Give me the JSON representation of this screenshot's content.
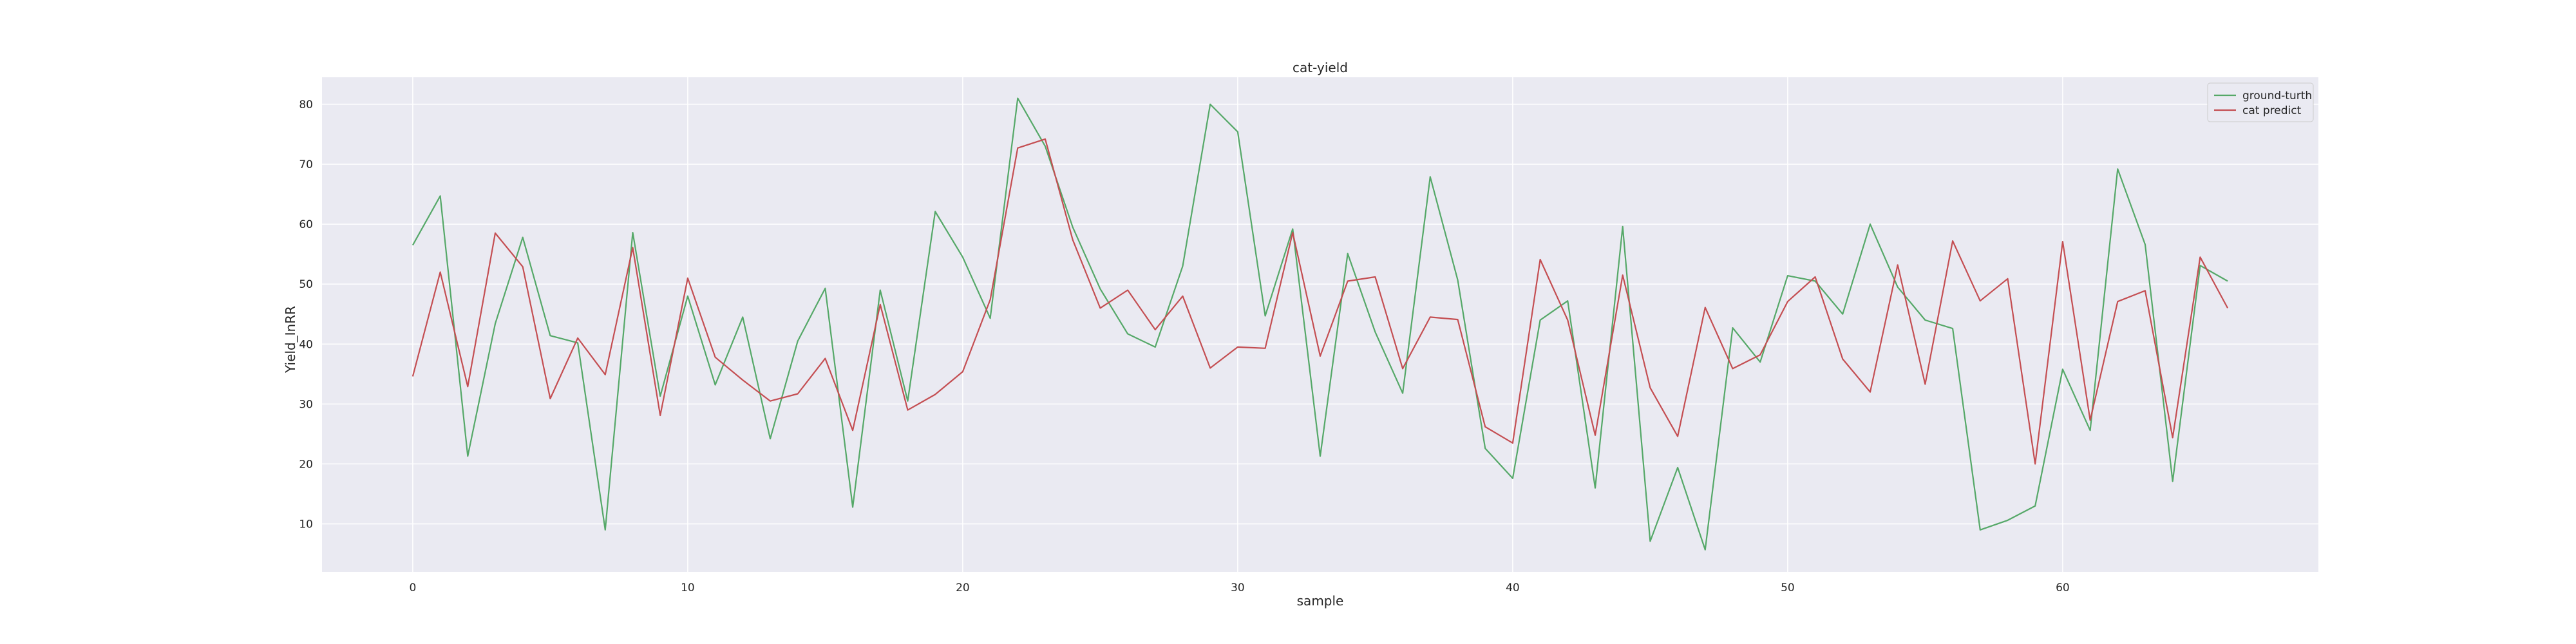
{
  "chart_data": {
    "type": "line",
    "title": "cat-yield",
    "xlabel": "sample",
    "ylabel": "Yield_InRR",
    "xlim": [
      -3.3,
      69.3
    ],
    "ylim": [
      2,
      84.5
    ],
    "xticks": [
      0,
      10,
      20,
      30,
      40,
      50,
      60
    ],
    "yticks": [
      10,
      20,
      30,
      40,
      50,
      60,
      70,
      80
    ],
    "grid": true,
    "legend_position": "top-right",
    "x": [
      0,
      1,
      2,
      3,
      4,
      5,
      6,
      7,
      8,
      9,
      10,
      11,
      12,
      13,
      14,
      15,
      16,
      17,
      18,
      19,
      20,
      21,
      22,
      23,
      24,
      25,
      26,
      27,
      28,
      29,
      30,
      31,
      32,
      33,
      34,
      35,
      36,
      37,
      38,
      39,
      40,
      41,
      42,
      43,
      44,
      45,
      46,
      47,
      48,
      49,
      50,
      51,
      52,
      53,
      54,
      55,
      56,
      57,
      58,
      59,
      60,
      61,
      62,
      63,
      64,
      65,
      66
    ],
    "series": [
      {
        "name": "ground-turth",
        "color": "#55a868",
        "values": [
          56.5,
          64.7,
          21.3,
          43.4,
          57.8,
          41.4,
          40.2,
          9.0,
          58.6,
          31.3,
          48.0,
          33.2,
          44.5,
          24.2,
          40.5,
          49.3,
          12.8,
          49.0,
          30.5,
          62.1,
          54.5,
          44.3,
          81.0,
          73.0,
          59.5,
          49.2,
          41.7,
          39.5,
          53.0,
          80.0,
          75.4,
          44.7,
          59.2,
          21.3,
          55.1,
          42.0,
          31.8,
          67.9,
          50.7,
          22.6,
          17.6,
          44.0,
          47.2,
          16.0,
          59.6,
          7.1,
          19.4,
          5.7,
          42.7,
          37.0,
          51.4,
          50.5,
          45.0,
          60.0,
          49.5,
          44.0,
          42.6,
          9.0,
          10.6,
          13.0,
          35.8,
          25.6,
          69.2,
          56.6,
          17.1,
          53.1,
          50.5
        ]
      },
      {
        "name": "cat predict",
        "color": "#c44e52",
        "values": [
          34.6,
          52.0,
          32.9,
          58.5,
          52.9,
          30.9,
          41.0,
          34.9,
          56.1,
          28.1,
          51.0,
          37.8,
          34.0,
          30.5,
          31.7,
          37.6,
          25.6,
          46.6,
          29.0,
          31.6,
          35.4,
          47.4,
          72.7,
          74.2,
          57.4,
          46.0,
          49.0,
          42.4,
          48.0,
          36.0,
          39.5,
          39.3,
          58.6,
          38.0,
          50.5,
          51.2,
          35.9,
          44.5,
          44.1,
          26.2,
          23.5,
          54.1,
          44.0,
          24.8,
          51.5,
          32.7,
          24.6,
          46.1,
          35.9,
          38.2,
          47.1,
          51.2,
          37.5,
          32.0,
          53.2,
          33.3,
          57.2,
          47.2,
          50.9,
          20.0,
          57.1,
          27.3,
          47.1,
          48.9,
          24.4,
          54.5,
          46.0
        ]
      }
    ]
  }
}
